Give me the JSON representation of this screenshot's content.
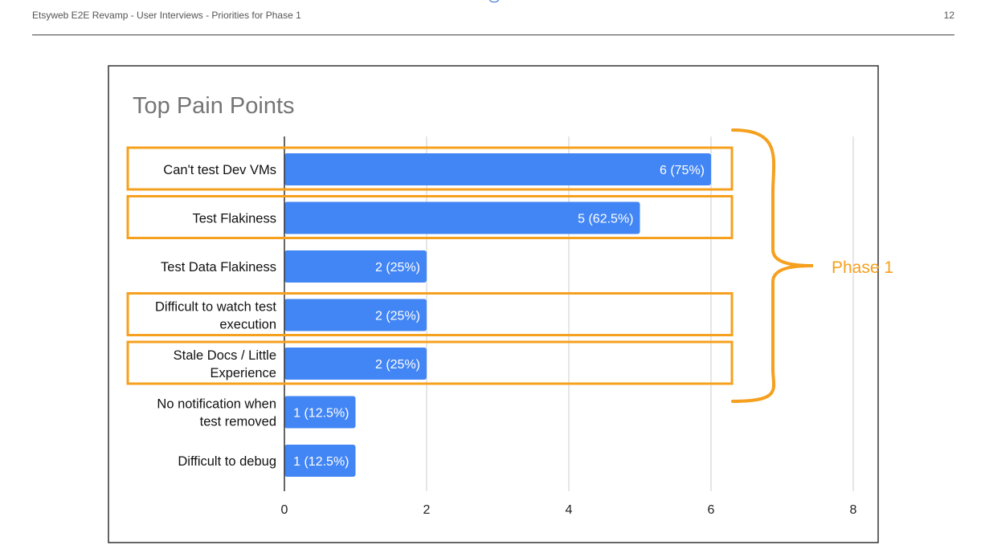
{
  "header": {
    "title": "Etsyweb E2E Revamp - User Interviews - Priorities for Phase 1",
    "page_number": "12"
  },
  "annotation": {
    "label": "Phase 1",
    "color": "#F5A01E",
    "highlighted_categories": [
      "Can't test Dev VMs",
      "Test Flakiness",
      "Difficult to watch test execution",
      "Stale Docs / Little Experience"
    ]
  },
  "chart_data": {
    "type": "bar",
    "orientation": "horizontal",
    "title": "Top Pain Points",
    "categories": [
      "Can't test Dev VMs",
      "Test Flakiness",
      "Test Data Flakiness",
      "Difficult to watch test execution",
      "Stale Docs / Little Experience",
      "No notification when test removed",
      "Difficult to debug"
    ],
    "category_lines": [
      [
        "Can't test Dev VMs"
      ],
      [
        "Test Flakiness"
      ],
      [
        "Test Data Flakiness"
      ],
      [
        "Difficult to watch test",
        "execution"
      ],
      [
        "Stale Docs / Little",
        "Experience"
      ],
      [
        "No notification when",
        "test removed"
      ],
      [
        "Difficult to debug"
      ]
    ],
    "values": [
      6,
      5,
      2,
      2,
      2,
      1,
      1
    ],
    "data_labels": [
      "6 (75%)",
      "5 (62.5%)",
      "2 (25%)",
      "2 (25%)",
      "2 (25%)",
      "1 (12.5%)",
      "1 (12.5%)"
    ],
    "xlim": [
      0,
      8
    ],
    "xticks": [
      "0",
      "2",
      "4",
      "6",
      "8"
    ],
    "xlabel": "",
    "ylabel": "",
    "grid": true,
    "legend": "none",
    "bar_color": "#4285F4"
  }
}
